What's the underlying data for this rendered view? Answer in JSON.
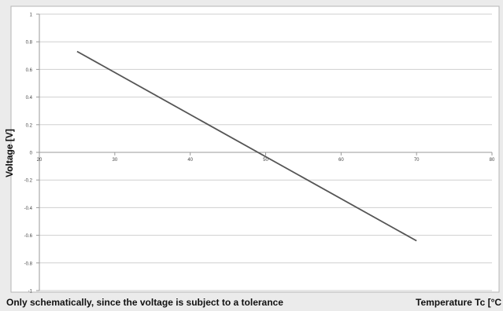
{
  "chart_data": {
    "type": "line",
    "title": "",
    "xlabel": "Temperature Tc [°C",
    "ylabel": "Voltage [V]",
    "caption": "Only schematically, since the voltage is subject to a tolerance",
    "xlim": [
      20,
      80
    ],
    "ylim": [
      -1,
      1
    ],
    "xticks": [
      "20",
      "30",
      "40",
      "50",
      "60",
      "70",
      "80"
    ],
    "yticks": [
      "1",
      "0.8",
      "0.6",
      "0.4",
      "0.2",
      "0",
      "-0.2",
      "-0.4",
      "-0.6",
      "-0.8",
      "-1"
    ],
    "grid": true,
    "series": [
      {
        "x": [
          25,
          70
        ],
        "y": [
          0.73,
          -0.64
        ]
      }
    ],
    "line_color": "#555555"
  }
}
